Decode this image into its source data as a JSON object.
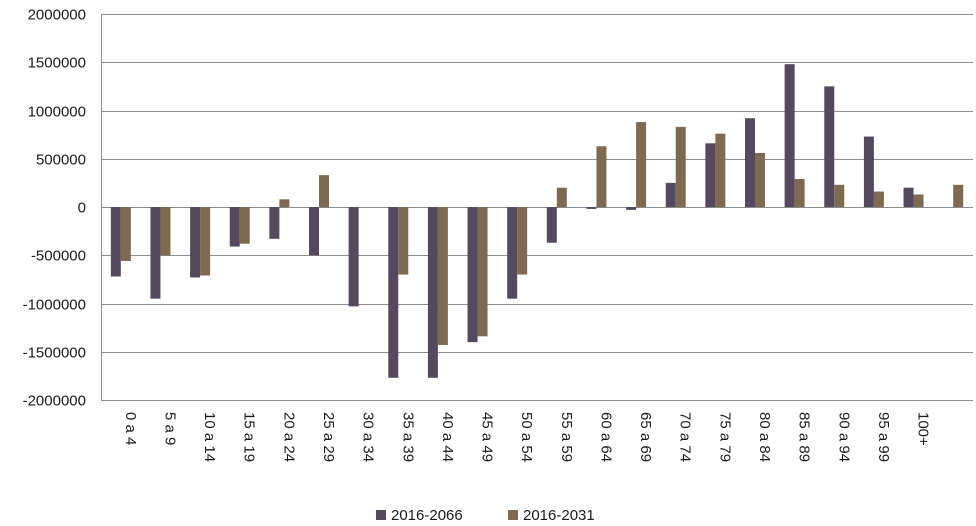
{
  "chart_data": {
    "type": "bar",
    "title": "",
    "xlabel": "",
    "ylabel": "",
    "categories": [
      "0 a 4",
      "5 a 9",
      "10 a 14",
      "15 a 19",
      "20 a 24",
      "25 a 29",
      "30 a 34",
      "35 a 39",
      "40 a 44",
      "45 a 49",
      "50 a 54",
      "55 a 59",
      "60 a 64",
      "65 a 69",
      "70 a 74",
      "75 a 79",
      "80 a 84",
      "85 a 89",
      "90 a 94",
      "95 a 99",
      "100+",
      ""
    ],
    "series": [
      {
        "name": "2016-2066",
        "color": "#54495f",
        "values": [
          -720000,
          -950000,
          -730000,
          -410000,
          -330000,
          -500000,
          -1030000,
          -1770000,
          -1770000,
          -1400000,
          -950000,
          -370000,
          -20000,
          -30000,
          250000,
          660000,
          920000,
          1480000,
          1250000,
          730000,
          200000,
          0
        ]
      },
      {
        "name": "2016-2031",
        "color": "#7d6a50",
        "values": [
          -560000,
          -500000,
          -710000,
          -380000,
          80000,
          330000,
          0,
          -700000,
          -1430000,
          -1340000,
          -700000,
          200000,
          630000,
          880000,
          830000,
          760000,
          560000,
          290000,
          230000,
          160000,
          130000,
          230000
        ]
      }
    ],
    "ylim": [
      -2000000,
      2000000
    ],
    "yticks": [
      -2000000,
      -1500000,
      -1000000,
      -500000,
      0,
      500000,
      1000000,
      1500000,
      2000000
    ],
    "grid": true,
    "legend": "bottom"
  }
}
